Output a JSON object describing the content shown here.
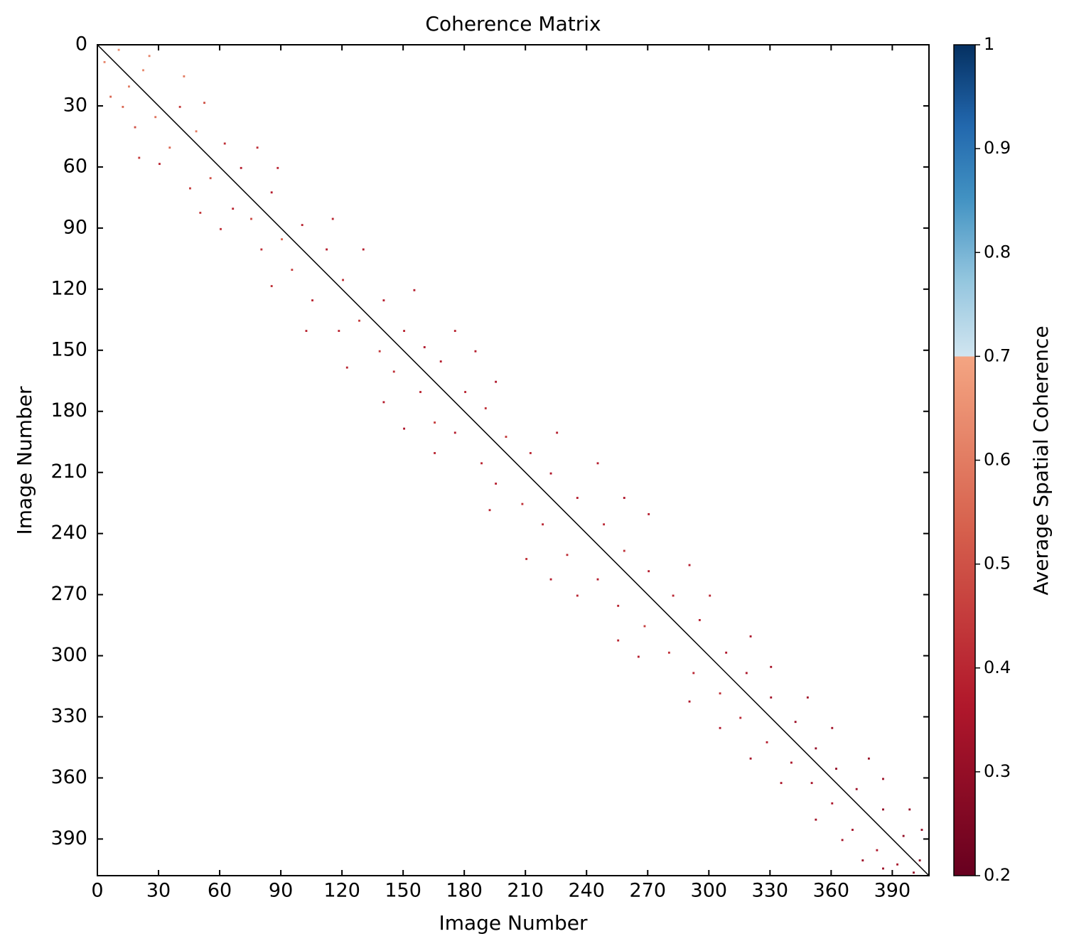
{
  "chart_data": {
    "type": "heatmap",
    "title": "Coherence Matrix",
    "x_label": "Image Number",
    "y_label": "Image Number",
    "xlim": [
      0,
      408
    ],
    "ylim": [
      408,
      0
    ],
    "xticks": [
      0,
      30,
      60,
      90,
      120,
      150,
      180,
      210,
      240,
      270,
      300,
      330,
      360,
      390
    ],
    "yticks": [
      0,
      30,
      60,
      90,
      120,
      150,
      180,
      210,
      240,
      270,
      300,
      330,
      360,
      390
    ],
    "diagonal": true,
    "diagonal_color": "#000000",
    "colorbar_label": "Average Spatial Coherence",
    "clim": [
      0.2,
      1.0
    ],
    "colorbar_ticks": [
      0.2,
      0.3,
      0.4,
      0.5,
      0.6,
      0.7,
      0.8,
      0.9,
      1.0
    ],
    "colormap_break": 0.7,
    "colormap_low": [
      "#67001f",
      "#b2182b",
      "#d6604d",
      "#f4a582"
    ],
    "colormap_high": [
      "#d1e5f0",
      "#92c5de",
      "#4393c3",
      "#2166ac",
      "#053061"
    ],
    "x": [
      3,
      10,
      15,
      6,
      22,
      28,
      18,
      40,
      35,
      48,
      30,
      55,
      62,
      70,
      45,
      75,
      66,
      85,
      90,
      80,
      100,
      95,
      112,
      105,
      120,
      128,
      118,
      140,
      138,
      150,
      145,
      160,
      158,
      168,
      165,
      180,
      175,
      190,
      188,
      200,
      195,
      212,
      208,
      222,
      218,
      235,
      230,
      248,
      245,
      258,
      255,
      270,
      268,
      282,
      280,
      295,
      292,
      308,
      305,
      318,
      315,
      330,
      328,
      342,
      340,
      352,
      350,
      362,
      360,
      372,
      370,
      385,
      382,
      395,
      392,
      403,
      400,
      25,
      52,
      20,
      88,
      60,
      130,
      102,
      175,
      140,
      195,
      165,
      245,
      210,
      270,
      235,
      300,
      265,
      330,
      305,
      360,
      335,
      385,
      365,
      404,
      385,
      12,
      42,
      78,
      50,
      115,
      85,
      155,
      122,
      185,
      150,
      225,
      192,
      258,
      222,
      290,
      255,
      320,
      290,
      348,
      320,
      378,
      352,
      398,
      375
    ],
    "y": [
      8,
      2,
      20,
      25,
      12,
      35,
      40,
      30,
      50,
      42,
      58,
      65,
      48,
      60,
      70,
      85,
      80,
      72,
      95,
      100,
      88,
      110,
      100,
      125,
      115,
      135,
      140,
      125,
      150,
      140,
      160,
      148,
      170,
      155,
      185,
      170,
      190,
      178,
      205,
      192,
      215,
      200,
      225,
      210,
      235,
      222,
      250,
      235,
      262,
      248,
      275,
      258,
      285,
      270,
      298,
      282,
      308,
      298,
      318,
      308,
      330,
      320,
      342,
      332,
      352,
      345,
      362,
      355,
      372,
      365,
      385,
      375,
      395,
      388,
      402,
      400,
      406,
      5,
      28,
      55,
      60,
      90,
      100,
      140,
      140,
      175,
      165,
      200,
      205,
      252,
      230,
      270,
      270,
      300,
      305,
      335,
      335,
      362,
      360,
      390,
      385,
      404,
      30,
      15,
      50,
      82,
      85,
      118,
      120,
      158,
      150,
      188,
      190,
      228,
      222,
      262,
      255,
      292,
      290,
      322,
      320,
      350,
      350,
      380,
      375,
      400
    ],
    "values": [
      0.62,
      0.65,
      0.6,
      0.55,
      0.63,
      0.58,
      0.5,
      0.45,
      0.55,
      0.6,
      0.4,
      0.5,
      0.42,
      0.38,
      0.45,
      0.48,
      0.4,
      0.38,
      0.55,
      0.42,
      0.4,
      0.45,
      0.38,
      0.4,
      0.42,
      0.45,
      0.4,
      0.38,
      0.44,
      0.4,
      0.42,
      0.36,
      0.4,
      0.38,
      0.45,
      0.4,
      0.38,
      0.42,
      0.4,
      0.44,
      0.38,
      0.4,
      0.42,
      0.36,
      0.4,
      0.38,
      0.42,
      0.4,
      0.38,
      0.42,
      0.4,
      0.38,
      0.45,
      0.4,
      0.42,
      0.38,
      0.4,
      0.36,
      0.42,
      0.35,
      0.4,
      0.33,
      0.38,
      0.32,
      0.35,
      0.3,
      0.34,
      0.3,
      0.35,
      0.32,
      0.34,
      0.3,
      0.36,
      0.3,
      0.34,
      0.28,
      0.3,
      0.62,
      0.5,
      0.45,
      0.4,
      0.42,
      0.38,
      0.4,
      0.4,
      0.38,
      0.36,
      0.4,
      0.38,
      0.42,
      0.38,
      0.4,
      0.4,
      0.38,
      0.34,
      0.36,
      0.33,
      0.35,
      0.32,
      0.34,
      0.3,
      0.32,
      0.55,
      0.6,
      0.42,
      0.44,
      0.4,
      0.42,
      0.38,
      0.4,
      0.38,
      0.36,
      0.38,
      0.4,
      0.36,
      0.38,
      0.38,
      0.4,
      0.35,
      0.36,
      0.33,
      0.34,
      0.31,
      0.33,
      0.3,
      0.32
    ]
  }
}
